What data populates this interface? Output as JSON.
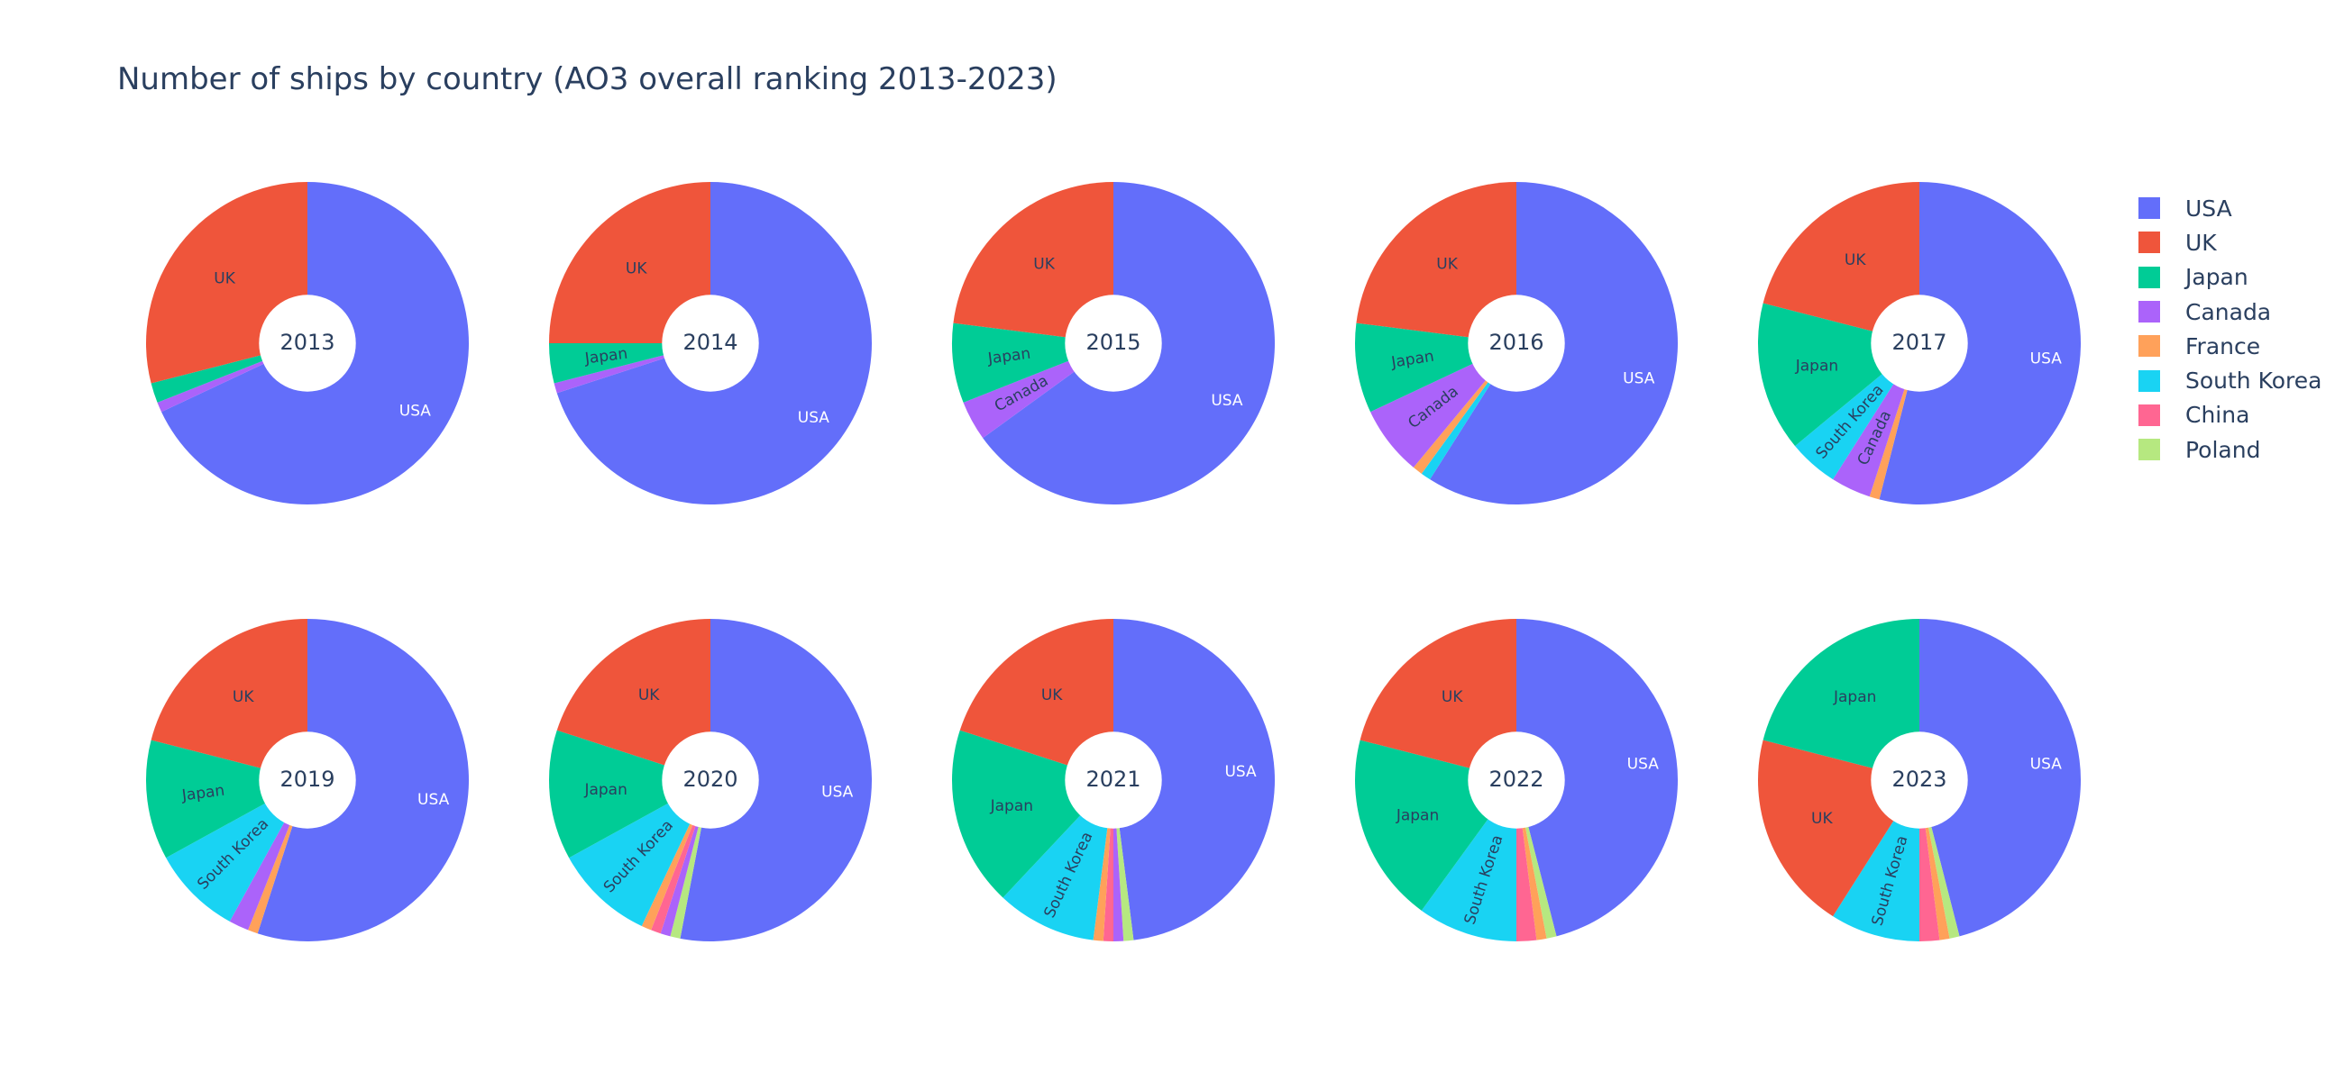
{
  "colors": {
    "USA": "#636efa",
    "UK": "#ef553b",
    "Japan": "#00cc96",
    "Canada": "#ab63fa",
    "France": "#ffa15a",
    "South Korea": "#19d3f3",
    "China": "#ff6692",
    "Poland": "#b6e880"
  },
  "chart_data": {
    "type": "pie",
    "title": "Number of ships by country (AO3 overall ranking 2013-2023)",
    "legend": [
      "USA",
      "UK",
      "Japan",
      "Canada",
      "France",
      "South Korea",
      "China",
      "Poland"
    ],
    "legend_position": "right",
    "hole": 0.3,
    "charts": [
      {
        "year": "2013",
        "slices": [
          {
            "label": "USA",
            "value": 68
          },
          {
            "label": "Canada",
            "value": 1
          },
          {
            "label": "Japan",
            "value": 2
          },
          {
            "label": "UK",
            "value": 29
          }
        ]
      },
      {
        "year": "2014",
        "slices": [
          {
            "label": "USA",
            "value": 70
          },
          {
            "label": "Canada",
            "value": 1
          },
          {
            "label": "Japan",
            "value": 4
          },
          {
            "label": "UK",
            "value": 25
          }
        ]
      },
      {
        "year": "2015",
        "slices": [
          {
            "label": "USA",
            "value": 65
          },
          {
            "label": "Canada",
            "value": 4
          },
          {
            "label": "Japan",
            "value": 8
          },
          {
            "label": "UK",
            "value": 23
          }
        ]
      },
      {
        "year": "2016",
        "slices": [
          {
            "label": "USA",
            "value": 59
          },
          {
            "label": "South Korea",
            "value": 1
          },
          {
            "label": "France",
            "value": 1
          },
          {
            "label": "Canada",
            "value": 7
          },
          {
            "label": "Japan",
            "value": 9
          },
          {
            "label": "UK",
            "value": 23
          }
        ]
      },
      {
        "year": "2017",
        "slices": [
          {
            "label": "USA",
            "value": 54
          },
          {
            "label": "France",
            "value": 1
          },
          {
            "label": "Canada",
            "value": 4
          },
          {
            "label": "South Korea",
            "value": 5
          },
          {
            "label": "Japan",
            "value": 15
          },
          {
            "label": "UK",
            "value": 21
          }
        ]
      },
      {
        "year": "2019",
        "slices": [
          {
            "label": "USA",
            "value": 55
          },
          {
            "label": "France",
            "value": 1
          },
          {
            "label": "Canada",
            "value": 2
          },
          {
            "label": "South Korea",
            "value": 9
          },
          {
            "label": "Japan",
            "value": 12
          },
          {
            "label": "UK",
            "value": 21
          }
        ]
      },
      {
        "year": "2020",
        "slices": [
          {
            "label": "USA",
            "value": 53
          },
          {
            "label": "Poland",
            "value": 1
          },
          {
            "label": "Canada",
            "value": 1
          },
          {
            "label": "China",
            "value": 1
          },
          {
            "label": "France",
            "value": 1
          },
          {
            "label": "South Korea",
            "value": 10
          },
          {
            "label": "Japan",
            "value": 13
          },
          {
            "label": "UK",
            "value": 20
          }
        ]
      },
      {
        "year": "2021",
        "slices": [
          {
            "label": "USA",
            "value": 48
          },
          {
            "label": "Poland",
            "value": 1
          },
          {
            "label": "Canada",
            "value": 1
          },
          {
            "label": "China",
            "value": 1
          },
          {
            "label": "France",
            "value": 1
          },
          {
            "label": "South Korea",
            "value": 10
          },
          {
            "label": "Japan",
            "value": 18
          },
          {
            "label": "UK",
            "value": 20
          }
        ]
      },
      {
        "year": "2022",
        "slices": [
          {
            "label": "USA",
            "value": 46
          },
          {
            "label": "Poland",
            "value": 1
          },
          {
            "label": "France",
            "value": 1
          },
          {
            "label": "China",
            "value": 2
          },
          {
            "label": "South Korea",
            "value": 10
          },
          {
            "label": "Japan",
            "value": 19
          },
          {
            "label": "UK",
            "value": 21
          }
        ]
      },
      {
        "year": "2023",
        "slices": [
          {
            "label": "USA",
            "value": 46
          },
          {
            "label": "Poland",
            "value": 1
          },
          {
            "label": "France",
            "value": 1
          },
          {
            "label": "China",
            "value": 2
          },
          {
            "label": "South Korea",
            "value": 9
          },
          {
            "label": "UK",
            "value": 20
          },
          {
            "label": "Japan",
            "value": 21
          }
        ]
      }
    ]
  }
}
